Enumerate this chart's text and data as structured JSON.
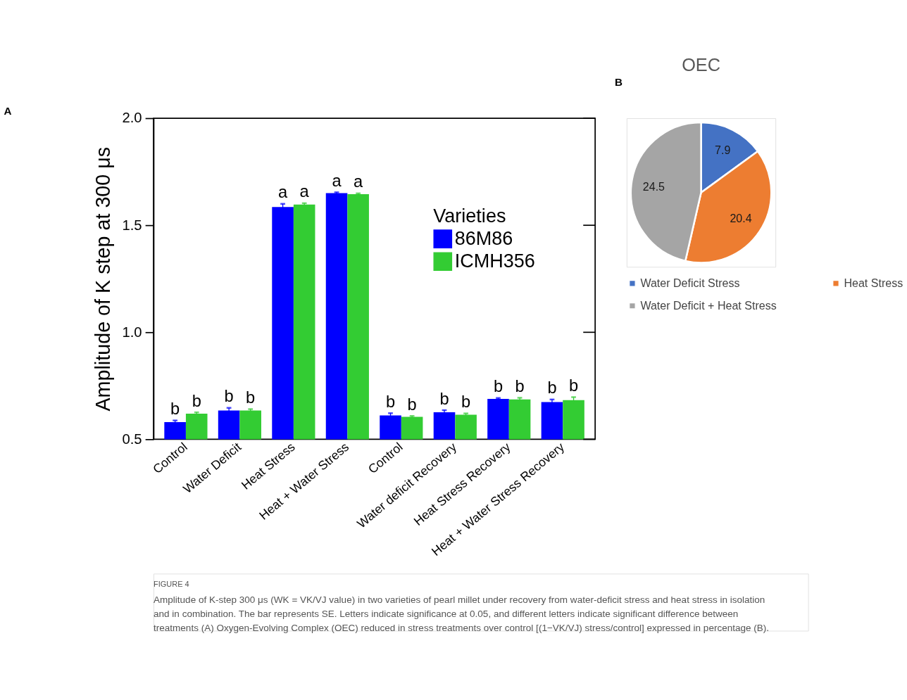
{
  "chart_data": [
    {
      "type": "bar",
      "ylabel": "Amplitude of K step at 300 μs",
      "legend_title": "Varieties",
      "legend": "top right",
      "categories": [
        "Control",
        "Water Deficit",
        "Heat Stress",
        "Heat + Water Stress",
        "Control",
        "Water deficit Recovery",
        "Heat Stress Recovery",
        "Heat + Water  Stress Recovery"
      ],
      "series": [
        {
          "name": "86M86",
          "color": "#0000ff",
          "values": [
            0.58,
            0.635,
            1.585,
            1.65,
            0.612,
            0.626,
            0.689,
            0.674
          ],
          "errors": [
            0.008,
            0.012,
            0.015,
            0.004,
            0.01,
            0.01,
            0.004,
            0.012
          ],
          "value_labels": [
            "b",
            "b",
            "a",
            "a",
            "b",
            "b",
            "b",
            "b"
          ]
        },
        {
          "name": "ICMH356",
          "color": "#33cc33",
          "values": [
            0.62,
            0.635,
            1.597,
            1.645,
            0.605,
            0.615,
            0.686,
            0.683
          ],
          "errors": [
            0.006,
            0.006,
            0.006,
            0.004,
            0.004,
            0.006,
            0.008,
            0.014
          ],
          "value_labels": [
            "b",
            "b",
            "a",
            "a",
            "b",
            "b",
            "b",
            "b"
          ]
        }
      ],
      "ylim": [
        0.5,
        2.0
      ],
      "yticks": [
        0.5,
        {
          "value": 1,
          "label": "1.0"
        },
        1.5,
        {
          "value": 2,
          "label": "2.0"
        }
      ],
      "grid": false,
      "annotations": [
        "A",
        "FIGURE 4",
        "Amplitude of K-step 300 μs (WK = VK/VJ value) in two varieties of pearl millet under recovery from water-deficit stress and heat stress in isolation and in combination. The bar represents SE. Letters indicate significance at 0.05, and different letters indicate significant difference between treatments (A) Oxygen-Evolving Complex (OEC) reduced in stress treatments over control [(1−VK/VJ) stress/control] expressed in percentage (B)."
      ]
    },
    {
      "type": "pie",
      "title": "OEC",
      "legend": "bottom",
      "categories": [
        "Water Deficit Stress",
        "Heat Stress",
        "Water Deficit + Heat Stress"
      ],
      "values": [
        7.9,
        20.4,
        24.5
      ],
      "colors": [
        "#4472c4",
        "#ed7d31",
        "#a5a5a5"
      ],
      "data_labels": true,
      "annotations": [
        "B"
      ]
    }
  ]
}
